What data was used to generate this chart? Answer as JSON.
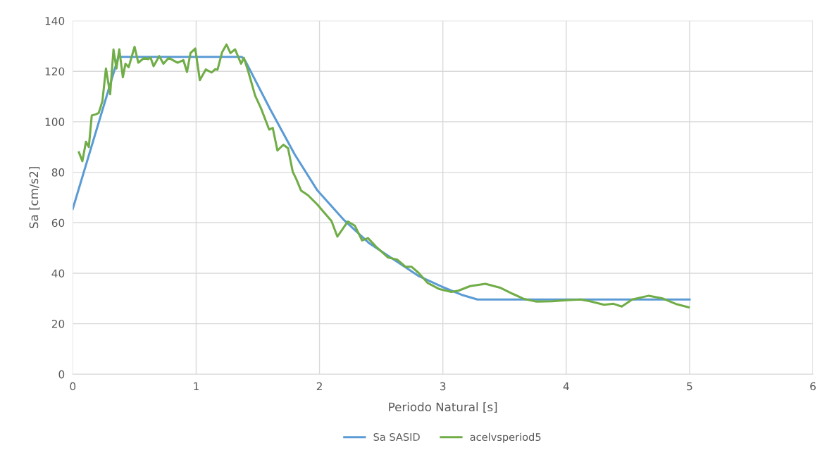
{
  "chart_data": {
    "type": "line",
    "xlabel": "Periodo Natural [s]",
    "ylabel": "Sa [cm/s2]",
    "xlim": [
      0,
      6
    ],
    "xticks": [
      0,
      1,
      2,
      3,
      4,
      5,
      6
    ],
    "ylim": [
      0,
      140
    ],
    "yticks": [
      0,
      20,
      40,
      60,
      80,
      100,
      120,
      140
    ],
    "grid": true,
    "legend": "bottom",
    "marker": "none",
    "line_style": "solid",
    "series": [
      {
        "name": "Sa SASID",
        "color": "#5b9bd5",
        "x": [
          0,
          0.37,
          1.37,
          1.4,
          1.6,
          1.8,
          1.98,
          2.2,
          2.4,
          2.6,
          2.8,
          2.99,
          3.15,
          3.28,
          5
        ],
        "values": [
          65.5,
          125.7,
          125.7,
          124,
          105,
          87,
          73,
          61,
          52,
          45.5,
          39,
          34.7,
          31.5,
          29.6,
          29.6
        ]
      },
      {
        "name": "acelvsperiod5",
        "color": "#70ad47",
        "x": [
          0.05,
          0.078,
          0.107,
          0.13,
          0.154,
          0.19,
          0.21,
          0.24,
          0.269,
          0.303,
          0.33,
          0.354,
          0.377,
          0.406,
          0.427,
          0.453,
          0.501,
          0.531,
          0.579,
          0.611,
          0.63,
          0.655,
          0.701,
          0.735,
          0.777,
          0.811,
          0.85,
          0.897,
          0.926,
          0.954,
          0.993,
          1.03,
          1.078,
          1.126,
          1.154,
          1.173,
          1.211,
          1.246,
          1.278,
          1.316,
          1.364,
          1.387,
          1.421,
          1.478,
          1.526,
          1.592,
          1.621,
          1.659,
          1.707,
          1.745,
          1.783,
          1.811,
          1.85,
          1.907,
          1.983,
          2.04,
          2.097,
          2.145,
          2.23,
          2.287,
          2.345,
          2.393,
          2.459,
          2.554,
          2.63,
          2.697,
          2.745,
          2.802,
          2.878,
          2.973,
          3.069,
          3.126,
          3.221,
          3.345,
          3.469,
          3.564,
          3.659,
          3.754,
          3.888,
          4.002,
          4.116,
          4.193,
          4.307,
          4.383,
          4.45,
          4.535,
          4.669,
          4.783,
          4.897,
          4.993
        ],
        "values": [
          87.9,
          84.4,
          92.1,
          90,
          102.5,
          103,
          103.5,
          108.1,
          121.1,
          110.9,
          128.6,
          121.1,
          128.7,
          117.6,
          123,
          121.6,
          129.7,
          123.4,
          125.3,
          124.8,
          125.5,
          122,
          126,
          123,
          125.3,
          124.4,
          123.4,
          124.4,
          119.7,
          127.2,
          129,
          116.5,
          120.7,
          119.5,
          120.8,
          120.6,
          127.6,
          130.6,
          127.2,
          128.7,
          123,
          125.3,
          120.2,
          110.4,
          105.3,
          96.9,
          97.6,
          88.6,
          90.9,
          89.5,
          80.2,
          77.4,
          72.8,
          70.9,
          67.2,
          63.9,
          60.7,
          54.5,
          60.5,
          58.8,
          53,
          53.9,
          50.5,
          46.3,
          45.4,
          42.6,
          42.6,
          40.2,
          36.1,
          33.7,
          32.6,
          33.1,
          34.9,
          35.8,
          34.2,
          31.9,
          29.8,
          28.8,
          28.9,
          29.3,
          29.6,
          28.9,
          27.5,
          27.9,
          26.8,
          29.6,
          31.1,
          30,
          27.7,
          26.5
        ]
      }
    ]
  }
}
